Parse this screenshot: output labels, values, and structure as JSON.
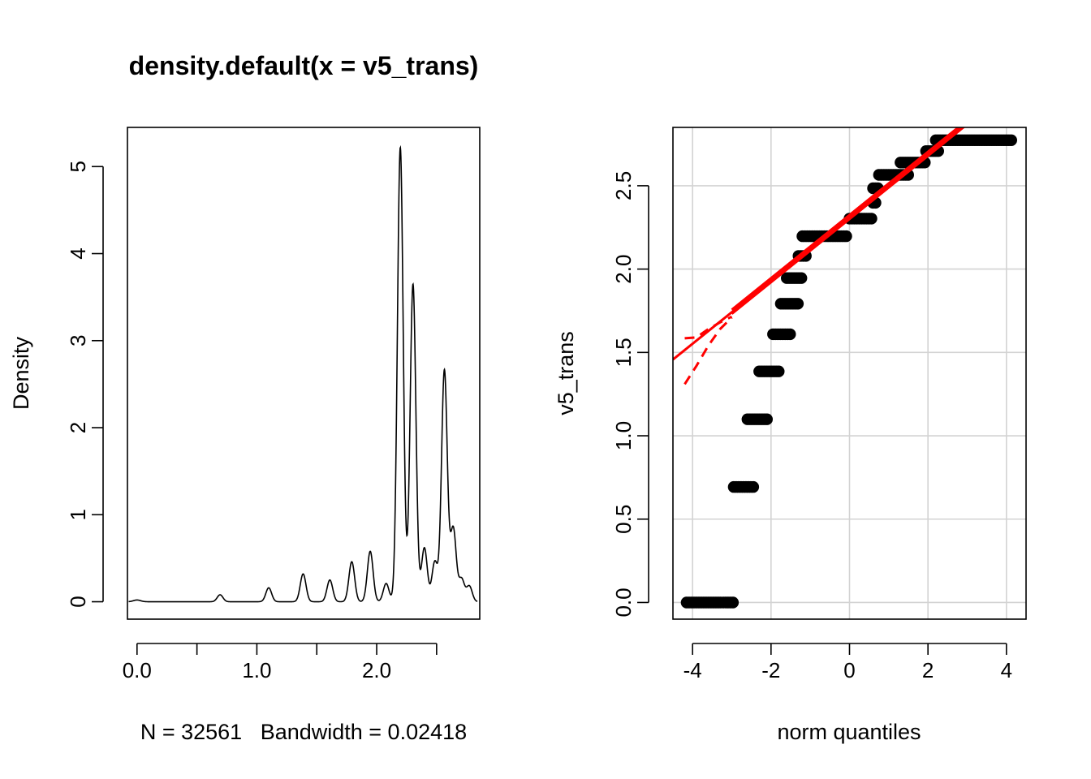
{
  "chart_data": [
    {
      "type": "line",
      "title": "density.default(x = v5_trans)",
      "xlabel": "N = 32561   Bandwidth = 0.02418",
      "ylabel": "Density",
      "xlim": [
        -0.08,
        2.86
      ],
      "ylim": [
        -0.2,
        5.45
      ],
      "x_ticks": [
        0.0,
        1.0,
        2.0
      ],
      "x_tick_labels": [
        "0.0",
        "1.0",
        "2.0"
      ],
      "x_minor_ticks": [
        0.5,
        1.5,
        2.5
      ],
      "y_ticks": [
        0,
        1,
        2,
        3,
        4,
        5
      ],
      "y_tick_labels": [
        "0",
        "1",
        "2",
        "3",
        "4",
        "5"
      ],
      "grid": false,
      "series": [
        {
          "color": "#000000",
          "peaks": [
            {
              "x": 0.0,
              "height": 0.02,
              "width": 0.03
            },
            {
              "x": 0.693,
              "height": 0.08,
              "width": 0.024
            },
            {
              "x": 1.099,
              "height": 0.16,
              "width": 0.024
            },
            {
              "x": 1.386,
              "height": 0.32,
              "width": 0.024
            },
            {
              "x": 1.609,
              "height": 0.25,
              "width": 0.024
            },
            {
              "x": 1.792,
              "height": 0.46,
              "width": 0.024
            },
            {
              "x": 1.946,
              "height": 0.58,
              "width": 0.024
            },
            {
              "x": 2.079,
              "height": 0.21,
              "width": 0.024
            },
            {
              "x": 2.197,
              "height": 5.22,
              "width": 0.024
            },
            {
              "x": 2.303,
              "height": 3.65,
              "width": 0.024
            },
            {
              "x": 2.398,
              "height": 0.62,
              "width": 0.024
            },
            {
              "x": 2.485,
              "height": 0.46,
              "width": 0.024
            },
            {
              "x": 2.565,
              "height": 2.66,
              "width": 0.024
            },
            {
              "x": 2.639,
              "height": 0.84,
              "width": 0.024
            },
            {
              "x": 2.708,
              "height": 0.26,
              "width": 0.024
            },
            {
              "x": 2.773,
              "height": 0.18,
              "width": 0.024
            }
          ],
          "x_range": [
            -0.07,
            2.84
          ]
        }
      ]
    },
    {
      "type": "scatter",
      "title": "",
      "xlabel": "norm quantiles",
      "ylabel": "v5_trans",
      "xlim": [
        -4.5,
        4.5
      ],
      "ylim": [
        -0.1,
        2.85
      ],
      "x_ticks": [
        -4,
        -2,
        0,
        2,
        4
      ],
      "x_tick_labels": [
        "-4",
        "-2",
        "0",
        "2",
        "4"
      ],
      "y_ticks": [
        0.0,
        0.5,
        1.0,
        1.5,
        2.0,
        2.5
      ],
      "y_tick_labels": [
        "0.0",
        "0.5",
        "1.0",
        "1.5",
        "2.0",
        "2.5"
      ],
      "grid": true,
      "points_color": "#000000",
      "steps": [
        {
          "y": 0.0,
          "x_from": -4.15,
          "x_to": -2.95
        },
        {
          "y": 0.693,
          "x_from": -2.95,
          "x_to": -2.4
        },
        {
          "y": 1.099,
          "x_from": -2.6,
          "x_to": -2.1
        },
        {
          "y": 1.386,
          "x_from": -2.3,
          "x_to": -1.75
        },
        {
          "y": 1.609,
          "x_from": -1.95,
          "x_to": -1.5
        },
        {
          "y": 1.792,
          "x_from": -1.75,
          "x_to": -1.3
        },
        {
          "y": 1.946,
          "x_from": -1.6,
          "x_to": -1.2
        },
        {
          "y": 2.079,
          "x_from": -1.3,
          "x_to": -1.1
        },
        {
          "y": 2.197,
          "x_from": -1.2,
          "x_to": -0.05
        },
        {
          "y": 2.303,
          "x_from": 0.0,
          "x_to": 0.6
        },
        {
          "y": 2.398,
          "x_from": 0.6,
          "x_to": 0.7
        },
        {
          "y": 2.485,
          "x_from": 0.6,
          "x_to": 0.75
        },
        {
          "y": 2.565,
          "x_from": 0.75,
          "x_to": 1.5
        },
        {
          "y": 2.639,
          "x_from": 1.3,
          "x_to": 1.95
        },
        {
          "y": 2.708,
          "x_from": 1.95,
          "x_to": 2.3
        },
        {
          "y": 2.773,
          "x_from": 2.2,
          "x_to": 4.15
        }
      ],
      "reference_line": {
        "color": "#ff0000",
        "intercept": 2.31,
        "slope": 0.1895
      },
      "confidence_band": {
        "color": "#ff0000",
        "style": "dashed",
        "x_from": -4.2,
        "x_to": -3.0,
        "upper": [
          [
            -4.2,
            1.585
          ],
          [
            -3.9,
            1.59
          ],
          [
            -3.6,
            1.64
          ],
          [
            -3.3,
            1.68
          ],
          [
            -3.0,
            1.715
          ]
        ],
        "lower": [
          [
            -4.2,
            1.31
          ],
          [
            -3.9,
            1.42
          ],
          [
            -3.6,
            1.54
          ],
          [
            -3.3,
            1.64
          ],
          [
            -3.0,
            1.71
          ]
        ]
      }
    }
  ]
}
